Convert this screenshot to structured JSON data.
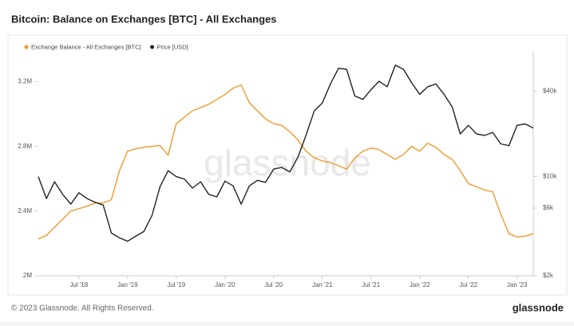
{
  "chart_data": {
    "type": "line",
    "title": "Bitcoin: Balance on Exchanges [BTC] - All Exchanges",
    "watermark": "glassnode",
    "footer": "© 2023 Glassnode. All Rights Reserved.",
    "logo": "glassnode",
    "x": [
      "2018-02",
      "2018-03",
      "2018-04",
      "2018-05",
      "2018-06",
      "2018-07",
      "2018-08",
      "2018-09",
      "2018-10",
      "2018-11",
      "2018-12",
      "2019-01",
      "2019-02",
      "2019-03",
      "2019-04",
      "2019-05",
      "2019-06",
      "2019-07",
      "2019-08",
      "2019-09",
      "2019-10",
      "2019-11",
      "2019-12",
      "2020-01",
      "2020-02",
      "2020-03",
      "2020-04",
      "2020-05",
      "2020-06",
      "2020-07",
      "2020-08",
      "2020-09",
      "2020-10",
      "2020-11",
      "2020-12",
      "2021-01",
      "2021-02",
      "2021-03",
      "2021-04",
      "2021-05",
      "2021-06",
      "2021-07",
      "2021-08",
      "2021-09",
      "2021-10",
      "2021-11",
      "2021-12",
      "2022-01",
      "2022-02",
      "2022-03",
      "2022-04",
      "2022-05",
      "2022-06",
      "2022-07",
      "2022-08",
      "2022-09",
      "2022-10",
      "2022-11",
      "2022-12",
      "2023-01",
      "2023-02",
      "2023-03"
    ],
    "xlim": [
      "2018-02",
      "2023-03"
    ],
    "xticks": [
      {
        "value": "2018-07",
        "label": "Jul '18"
      },
      {
        "value": "2019-01",
        "label": "Jan '19"
      },
      {
        "value": "2019-07",
        "label": "Jul '19"
      },
      {
        "value": "2020-01",
        "label": "Jan '20"
      },
      {
        "value": "2020-07",
        "label": "Jul '20"
      },
      {
        "value": "2021-01",
        "label": "Jan '21"
      },
      {
        "value": "2021-07",
        "label": "Jul '21"
      },
      {
        "value": "2022-01",
        "label": "Jan '22"
      },
      {
        "value": "2022-07",
        "label": "Jul '22"
      },
      {
        "value": "2023-01",
        "label": "Jan '23"
      }
    ],
    "ylim": [
      2000000,
      3360000
    ],
    "yticks": [
      {
        "value": 2000000,
        "label": "2M"
      },
      {
        "value": 2400000,
        "label": "2.4M"
      },
      {
        "value": 2800000,
        "label": "2.8M"
      },
      {
        "value": 3200000,
        "label": "3.2M"
      }
    ],
    "y2lim": [
      2000,
      71000
    ],
    "y2log": true,
    "y2ticks": [
      {
        "value": 2000,
        "label": "$2k"
      },
      {
        "value": 6000,
        "label": "$6k"
      },
      {
        "value": 10000,
        "label": "$10k"
      },
      {
        "value": 40000,
        "label": "$40k"
      }
    ],
    "series": [
      {
        "name": "Exchange Balance - All Exchanges [BTC]",
        "color": "#f09a2a",
        "axis": "y",
        "values": [
          2227000,
          2250000,
          2300000,
          2350000,
          2400000,
          2415000,
          2430000,
          2450000,
          2450000,
          2470000,
          2650000,
          2770000,
          2785000,
          2795000,
          2800000,
          2805000,
          2745000,
          2940000,
          2980000,
          3020000,
          3040000,
          3060000,
          3090000,
          3120000,
          3160000,
          3180000,
          3070000,
          3020000,
          2970000,
          2940000,
          2930000,
          2890000,
          2840000,
          2770000,
          2730000,
          2710000,
          2700000,
          2680000,
          2660000,
          2730000,
          2770000,
          2790000,
          2780000,
          2750000,
          2720000,
          2750000,
          2800000,
          2770000,
          2820000,
          2795000,
          2750000,
          2720000,
          2650000,
          2570000,
          2550000,
          2530000,
          2520000,
          2380000,
          2260000,
          2240000,
          2245000,
          2260000
        ]
      },
      {
        "name": "Price [USD]",
        "color": "#222222",
        "axis": "y2",
        "values": [
          10000,
          7000,
          9200,
          7500,
          6400,
          7700,
          7000,
          6600,
          6300,
          4000,
          3700,
          3500,
          3800,
          4100,
          5300,
          8500,
          11000,
          10000,
          9600,
          8300,
          9200,
          7500,
          7200,
          9300,
          8600,
          6400,
          8600,
          9400,
          9100,
          11300,
          11600,
          10800,
          13700,
          19600,
          29000,
          33000,
          45000,
          58000,
          57000,
          37000,
          35000,
          41000,
          47000,
          43000,
          61000,
          57000,
          46000,
          38000,
          43000,
          45000,
          38000,
          31000,
          20000,
          23000,
          20000,
          19500,
          20500,
          17000,
          16500,
          23000,
          23500,
          22000
        ]
      }
    ]
  }
}
